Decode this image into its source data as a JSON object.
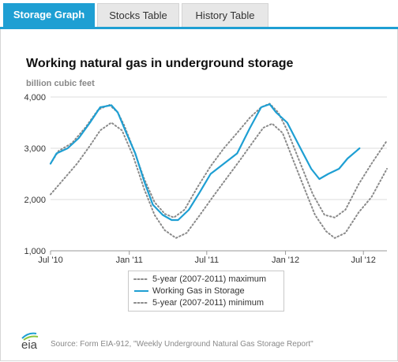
{
  "tabs": [
    {
      "label": "Storage Graph",
      "active": true
    },
    {
      "label": "Stocks Table",
      "active": false
    },
    {
      "label": "History Table",
      "active": false
    }
  ],
  "colors": {
    "accent": "#1e9fd3",
    "working": "#1e9fd3",
    "band": "#8a8a8a"
  },
  "logo": {
    "text": "eia"
  },
  "source": "Source: Form EIA-912, \"Weekly Underground Natural Gas Storage Report\"",
  "chart_data": {
    "type": "line",
    "title": "Working natural gas in underground storage",
    "ylabel": "billion cubic feet",
    "xlabel": "",
    "ylim": [
      1000,
      4000
    ],
    "yticks": [
      1000,
      2000,
      3000,
      4000
    ],
    "ytick_labels": [
      "1,000",
      "2,000",
      "3,000",
      "4,000"
    ],
    "xlim": [
      "2010-07-01",
      "2012-08-25"
    ],
    "xticks": [
      "2010-07-01",
      "2011-01-01",
      "2011-07-01",
      "2012-01-01",
      "2012-07-01"
    ],
    "xtick_labels": [
      "Jul '10",
      "Jan '11",
      "Jul '11",
      "Jan '12",
      "Jul '12"
    ],
    "grid": true,
    "legend_position": "bottom",
    "series": [
      {
        "name": "5-year (2007-2011) maximum",
        "style": "dotted",
        "points": [
          [
            "2010-07-01",
            2700
          ],
          [
            "2010-07-20",
            2950
          ],
          [
            "2010-08-20",
            3100
          ],
          [
            "2010-09-20",
            3400
          ],
          [
            "2010-10-20",
            3750
          ],
          [
            "2010-11-15",
            3850
          ],
          [
            "2010-12-05",
            3700
          ],
          [
            "2010-12-20",
            3450
          ],
          [
            "2011-01-10",
            3000
          ],
          [
            "2011-02-05",
            2400
          ],
          [
            "2011-03-01",
            1950
          ],
          [
            "2011-03-25",
            1720
          ],
          [
            "2011-04-15",
            1650
          ],
          [
            "2011-05-10",
            1800
          ],
          [
            "2011-06-10",
            2250
          ],
          [
            "2011-07-10",
            2650
          ],
          [
            "2011-08-10",
            3000
          ],
          [
            "2011-09-10",
            3300
          ],
          [
            "2011-10-10",
            3600
          ],
          [
            "2011-11-05",
            3800
          ],
          [
            "2011-11-25",
            3870
          ],
          [
            "2011-12-15",
            3700
          ],
          [
            "2012-01-05",
            3350
          ],
          [
            "2012-02-05",
            2700
          ],
          [
            "2012-03-05",
            2100
          ],
          [
            "2012-04-01",
            1700
          ],
          [
            "2012-04-25",
            1650
          ],
          [
            "2012-05-20",
            1800
          ],
          [
            "2012-06-20",
            2300
          ],
          [
            "2012-07-20",
            2700
          ],
          [
            "2012-08-25",
            3150
          ]
        ]
      },
      {
        "name": "Working Gas in Storage",
        "style": "solid",
        "points": [
          [
            "2010-07-01",
            2700
          ],
          [
            "2010-07-15",
            2900
          ],
          [
            "2010-08-10",
            3000
          ],
          [
            "2010-09-05",
            3200
          ],
          [
            "2010-10-01",
            3500
          ],
          [
            "2010-10-25",
            3800
          ],
          [
            "2010-11-20",
            3840
          ],
          [
            "2010-12-05",
            3700
          ],
          [
            "2010-12-25",
            3300
          ],
          [
            "2011-01-15",
            2900
          ],
          [
            "2011-02-05",
            2350
          ],
          [
            "2011-02-25",
            1900
          ],
          [
            "2011-03-20",
            1700
          ],
          [
            "2011-04-10",
            1600
          ],
          [
            "2011-04-25",
            1600
          ],
          [
            "2011-05-20",
            1800
          ],
          [
            "2011-06-15",
            2150
          ],
          [
            "2011-07-10",
            2500
          ],
          [
            "2011-08-10",
            2700
          ],
          [
            "2011-09-10",
            2900
          ],
          [
            "2011-10-10",
            3400
          ],
          [
            "2011-11-05",
            3800
          ],
          [
            "2011-11-25",
            3860
          ],
          [
            "2011-12-10",
            3700
          ],
          [
            "2012-01-05",
            3500
          ],
          [
            "2012-02-05",
            3000
          ],
          [
            "2012-03-01",
            2600
          ],
          [
            "2012-03-20",
            2400
          ],
          [
            "2012-04-10",
            2500
          ],
          [
            "2012-05-05",
            2600
          ],
          [
            "2012-05-25",
            2800
          ],
          [
            "2012-06-15",
            2950
          ],
          [
            "2012-06-22",
            3000
          ]
        ]
      },
      {
        "name": "5-year (2007-2011) minimum",
        "style": "dotted",
        "points": [
          [
            "2010-07-01",
            2100
          ],
          [
            "2010-08-01",
            2400
          ],
          [
            "2010-09-01",
            2700
          ],
          [
            "2010-10-01",
            3050
          ],
          [
            "2010-10-25",
            3350
          ],
          [
            "2010-11-20",
            3500
          ],
          [
            "2010-12-15",
            3350
          ],
          [
            "2011-01-10",
            2850
          ],
          [
            "2011-02-05",
            2200
          ],
          [
            "2011-03-01",
            1700
          ],
          [
            "2011-03-25",
            1400
          ],
          [
            "2011-04-20",
            1250
          ],
          [
            "2011-05-15",
            1350
          ],
          [
            "2011-06-15",
            1700
          ],
          [
            "2011-07-15",
            2050
          ],
          [
            "2011-08-15",
            2400
          ],
          [
            "2011-09-15",
            2750
          ],
          [
            "2011-10-15",
            3100
          ],
          [
            "2011-11-10",
            3400
          ],
          [
            "2011-12-01",
            3480
          ],
          [
            "2011-12-25",
            3300
          ],
          [
            "2012-01-20",
            2750
          ],
          [
            "2012-02-15",
            2200
          ],
          [
            "2012-03-10",
            1700
          ],
          [
            "2012-04-05",
            1380
          ],
          [
            "2012-04-25",
            1250
          ],
          [
            "2012-05-20",
            1350
          ],
          [
            "2012-06-20",
            1750
          ],
          [
            "2012-07-20",
            2050
          ],
          [
            "2012-08-25",
            2600
          ]
        ]
      }
    ]
  }
}
